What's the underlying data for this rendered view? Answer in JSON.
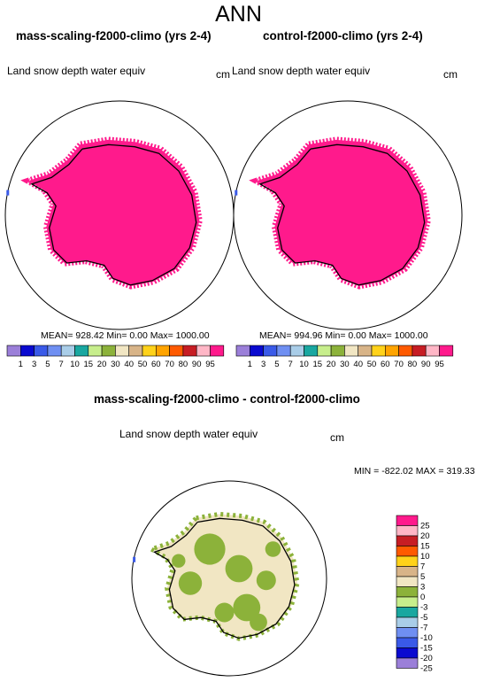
{
  "header": {
    "season": "ANN"
  },
  "panels": {
    "left": {
      "title": "mass-scaling-f2000-climo (yrs 2-4)",
      "variable": "Land snow depth water equiv",
      "units": "cm",
      "stats": "MEAN= 928.42  Min=   0.00  Max= 1000.00"
    },
    "right": {
      "title": "control-f2000-climo (yrs 2-4)",
      "variable": "Land snow depth water equiv",
      "units": "cm",
      "stats": "MEAN= 994.96  Min=   0.00  Max= 1000.00"
    },
    "diff": {
      "title": "mass-scaling-f2000-climo - control-f2000-climo",
      "variable": "Land snow depth water equiv",
      "units": "cm",
      "stats": "MIN = -822.02 MAX = 319.33"
    }
  },
  "chart_data": [
    {
      "type": "heatmap",
      "title": "mass-scaling-f2000-climo (yrs 2-4)",
      "subtitle": "Land snow depth water equiv",
      "units": "cm",
      "projection": "south polar stereographic",
      "stats": {
        "mean": 928.42,
        "min": 0.0,
        "max": 1000.0
      },
      "dominant_value_over_antarctica": 1000,
      "colorbar": {
        "orientation": "horizontal",
        "levels": [
          "1",
          "3",
          "5",
          "7",
          "10",
          "15",
          "20",
          "30",
          "40",
          "50",
          "60",
          "70",
          "80",
          "90",
          "95"
        ],
        "colors": [
          "#9b7fd9",
          "#0a0ad0",
          "#3a5ae8",
          "#6f8ff2",
          "#a9cde8",
          "#19a7a0",
          "#c7ee8c",
          "#8cb23a",
          "#f1e6c3",
          "#d8b488",
          "#ffd21a",
          "#ffa400",
          "#ff5a00",
          "#c71d24",
          "#ffb6c6",
          "#ff1a8c"
        ]
      }
    },
    {
      "type": "heatmap",
      "title": "control-f2000-climo (yrs 2-4)",
      "subtitle": "Land snow depth water equiv",
      "units": "cm",
      "projection": "south polar stereographic",
      "stats": {
        "mean": 994.96,
        "min": 0.0,
        "max": 1000.0
      },
      "dominant_value_over_antarctica": 1000,
      "colorbar": {
        "orientation": "horizontal",
        "levels": [
          "1",
          "3",
          "5",
          "7",
          "10",
          "15",
          "20",
          "30",
          "40",
          "50",
          "60",
          "70",
          "80",
          "90",
          "95"
        ],
        "colors": [
          "#9b7fd9",
          "#0a0ad0",
          "#3a5ae8",
          "#6f8ff2",
          "#a9cde8",
          "#19a7a0",
          "#c7ee8c",
          "#8cb23a",
          "#f1e6c3",
          "#d8b488",
          "#ffd21a",
          "#ffa400",
          "#ff5a00",
          "#c71d24",
          "#ffb6c6",
          "#ff1a8c"
        ]
      }
    },
    {
      "type": "heatmap",
      "title": "mass-scaling-f2000-climo - control-f2000-climo",
      "subtitle": "Land snow depth water equiv",
      "units": "cm",
      "projection": "south polar stereographic",
      "stats": {
        "min": -822.02,
        "max": 319.33
      },
      "dominant_values_over_antarctica": [
        "0 to 3 (beige)",
        "-3 to 0 (olive green)"
      ],
      "colorbar": {
        "orientation": "vertical",
        "levels": [
          "25",
          "20",
          "15",
          "10",
          "7",
          "5",
          "3",
          "0",
          "-3",
          "-5",
          "-7",
          "-10",
          "-15",
          "-20",
          "-25"
        ],
        "colors": [
          "#ff1a8c",
          "#ffb6c6",
          "#c71d24",
          "#ff5a00",
          "#ffd21a",
          "#d8b488",
          "#f1e6c3",
          "#8cb23a",
          "#c7ee8c",
          "#19a7a0",
          "#a9cde8",
          "#6f8ff2",
          "#3a5ae8",
          "#0a0ad0",
          "#9b7fd9"
        ]
      }
    }
  ]
}
